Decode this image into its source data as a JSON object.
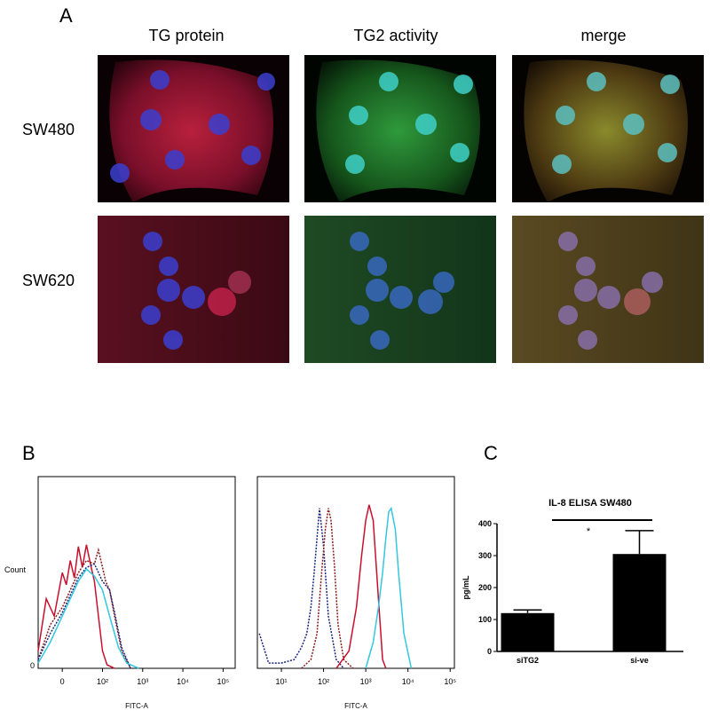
{
  "panel_a": {
    "label": "A",
    "columns": [
      "TG protein",
      "TG2 activity",
      "merge"
    ],
    "rows": [
      "SW480",
      "SW620"
    ]
  },
  "panel_b_label": "B",
  "panel_c_label": "C",
  "chart_data": [
    {
      "type": "line",
      "xlabel": "FITC-A",
      "ylabel": "Count",
      "xscale": "symlog",
      "xlim": [
        -60,
        200000
      ],
      "xticks": [
        0,
        {
          "value": 100,
          "label": "10²"
        },
        {
          "value": 1000,
          "label": "10³"
        },
        {
          "value": 10000,
          "label": "10⁴"
        },
        {
          "value": 100000,
          "label": "10⁵"
        }
      ],
      "ylim": [
        0,
        100
      ],
      "yticks": [
        0
      ],
      "series": [
        {
          "color": "#c8102e",
          "dash": false,
          "x": [
            -60,
            -40,
            -20,
            0,
            10,
            20,
            30,
            40,
            50,
            60,
            70,
            80,
            90,
            100,
            130,
            200
          ],
          "values": [
            10,
            40,
            30,
            55,
            48,
            62,
            52,
            70,
            58,
            71,
            60,
            50,
            30,
            10,
            2,
            0
          ]
        },
        {
          "color": "#8b1a1a",
          "dash": true,
          "x": [
            -60,
            -30,
            0,
            20,
            40,
            60,
            80,
            90,
            100,
            120,
            150,
            200,
            300,
            500
          ],
          "values": [
            5,
            25,
            35,
            45,
            55,
            62,
            60,
            68,
            58,
            50,
            45,
            30,
            10,
            0
          ]
        },
        {
          "color": "#1a237e",
          "dash": true,
          "x": [
            -60,
            -30,
            0,
            20,
            40,
            60,
            80,
            100,
            150,
            200,
            300,
            500
          ],
          "values": [
            5,
            20,
            32,
            42,
            52,
            58,
            60,
            50,
            45,
            32,
            12,
            0
          ]
        },
        {
          "color": "#33c7e0",
          "dash": false,
          "x": [
            -60,
            -30,
            0,
            20,
            40,
            60,
            80,
            100,
            150,
            250,
            400,
            800
          ],
          "values": [
            3,
            15,
            30,
            40,
            50,
            57,
            53,
            45,
            30,
            12,
            3,
            0
          ]
        }
      ]
    },
    {
      "type": "line",
      "xlabel": "FITC-A",
      "xscale": "log",
      "xlim": [
        2.7,
        126000
      ],
      "xticks": [
        {
          "value": 10,
          "label": "10¹"
        },
        {
          "value": 100,
          "label": "10²"
        },
        {
          "value": 1000,
          "label": "10³"
        },
        {
          "value": 10000,
          "label": "10⁴"
        },
        {
          "value": 100000,
          "label": "10⁵"
        }
      ],
      "ylim": [
        0,
        100
      ],
      "series": [
        {
          "color": "#1a237e",
          "dash": true,
          "x": [
            3,
            5,
            10,
            20,
            30,
            40,
            50,
            60,
            70,
            80,
            100,
            130,
            200,
            300
          ],
          "values": [
            20,
            3,
            3,
            5,
            12,
            20,
            35,
            55,
            75,
            92,
            70,
            30,
            5,
            0
          ]
        },
        {
          "color": "#8b1a1a",
          "dash": true,
          "x": [
            30,
            50,
            70,
            90,
            110,
            130,
            150,
            180,
            220,
            300,
            500
          ],
          "values": [
            0,
            5,
            20,
            55,
            80,
            92,
            85,
            60,
            25,
            5,
            0
          ]
        },
        {
          "color": "#c8102e",
          "dash": false,
          "x": [
            200,
            400,
            600,
            800,
            1000,
            1200,
            1500,
            2000,
            2500,
            3000
          ],
          "values": [
            0,
            10,
            35,
            65,
            85,
            94,
            85,
            40,
            5,
            0
          ]
        },
        {
          "color": "#33c7e0",
          "dash": false,
          "x": [
            1000,
            1500,
            2000,
            2500,
            3000,
            3500,
            4000,
            5000,
            6000,
            8000,
            12000
          ],
          "values": [
            0,
            15,
            35,
            55,
            75,
            90,
            92,
            80,
            55,
            20,
            0
          ]
        }
      ]
    },
    {
      "type": "bar",
      "title": "IL-8 ELISA SW480",
      "ylabel": "pg/mL",
      "categories": [
        "siTG2",
        "si-ve"
      ],
      "values": [
        120,
        305
      ],
      "errors": [
        10,
        73
      ],
      "ylim": [
        0,
        400
      ],
      "yticks": [
        0,
        100,
        200,
        300,
        400
      ],
      "color": "#000000",
      "annotation": "*"
    }
  ]
}
